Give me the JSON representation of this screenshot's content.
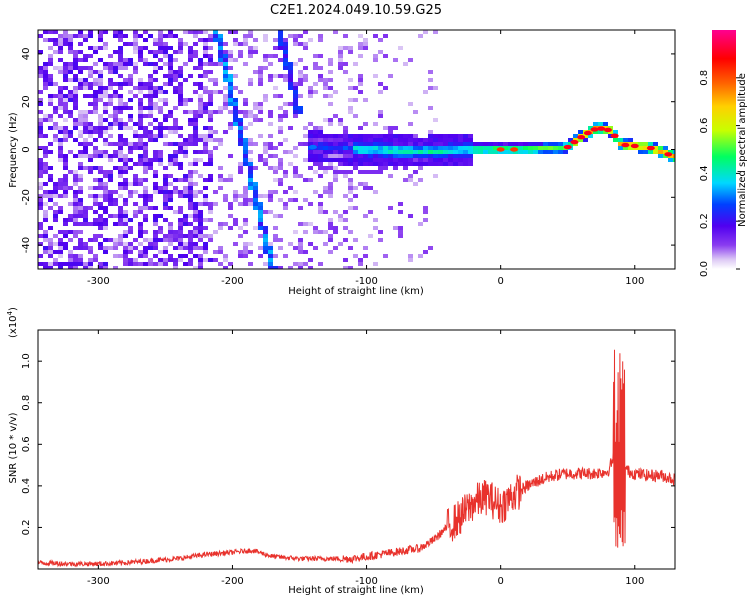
{
  "title": "C2E1.2024.049.10.59.G25",
  "chart_data": [
    {
      "type": "heatmap",
      "xlabel": "Height of straight line (km)",
      "ylabel": "Frequency (Hz)",
      "xlim": [
        -345,
        130
      ],
      "ylim": [
        -50,
        50
      ],
      "xticks": [
        -300,
        -200,
        -100,
        0,
        100
      ],
      "yticks": [
        -40,
        -20,
        0,
        20,
        40
      ],
      "colorbar": {
        "label": "Normalized spectral amplitude",
        "range": [
          0,
          1
        ],
        "ticks": [
          "0.0",
          "0.2",
          "0.4",
          "0.6",
          "0.8"
        ],
        "colors": [
          "#ffffff",
          "#dcc8f5",
          "#8a3cf0",
          "#5000f0",
          "#0040ff",
          "#00d8ff",
          "#00ff60",
          "#c8ff00",
          "#ffd000",
          "#ff6000",
          "#ff0000",
          "#ff0090"
        ]
      },
      "features": {
        "diagonal_lines": [
          {
            "x_at_top": -212,
            "x_at_bottom": -170
          },
          {
            "x_at_top": -165,
            "x_at_bottom": null
          }
        ],
        "carrier_track": [
          {
            "x": -140,
            "y": 1
          },
          {
            "x": -100,
            "y": 0
          },
          {
            "x": -60,
            "y": -1
          },
          {
            "x": -20,
            "y": 0
          },
          {
            "x": 20,
            "y": 0
          },
          {
            "x": 50,
            "y": 1
          },
          {
            "x": 62,
            "y": 6
          },
          {
            "x": 72,
            "y": 9
          },
          {
            "x": 82,
            "y": 8
          },
          {
            "x": 90,
            "y": 2
          },
          {
            "x": 110,
            "y": 1
          },
          {
            "x": 130,
            "y": -3
          }
        ]
      }
    },
    {
      "type": "line",
      "xlabel": "Height of straight line (km)",
      "ylabel": "SNR (10 * v/v)",
      "y_multiplier": "(x10",
      "y_multiplier_exp": "4",
      "y_multiplier_close": ")",
      "xlim": [
        -345,
        130
      ],
      "ylim": [
        0,
        1.15
      ],
      "xticks": [
        -300,
        -200,
        -100,
        0,
        100
      ],
      "yticks": [
        0.2,
        0.4,
        0.6,
        0.8,
        1.0
      ],
      "color": "#e8322c",
      "series": [
        {
          "x": [
            -345,
            -320,
            -300,
            -280,
            -260,
            -240,
            -220,
            -200,
            -185,
            -170,
            -150,
            -130,
            -110,
            -100,
            -80,
            -60,
            -50,
            -40,
            -30,
            -20,
            -10,
            0,
            10,
            20,
            30,
            40,
            50,
            60,
            70,
            80,
            85,
            88,
            90,
            92,
            95,
            100,
            110,
            120,
            130
          ],
          "y": [
            0.03,
            0.025,
            0.025,
            0.03,
            0.04,
            0.05,
            0.07,
            0.08,
            0.09,
            0.06,
            0.05,
            0.05,
            0.05,
            0.06,
            0.08,
            0.1,
            0.14,
            0.2,
            0.25,
            0.32,
            0.35,
            0.3,
            0.36,
            0.4,
            0.43,
            0.45,
            0.46,
            0.46,
            0.46,
            0.47,
            0.55,
            0.2,
            0.45,
            0.5,
            0.47,
            0.46,
            0.45,
            0.45,
            0.43
          ]
        }
      ]
    }
  ]
}
